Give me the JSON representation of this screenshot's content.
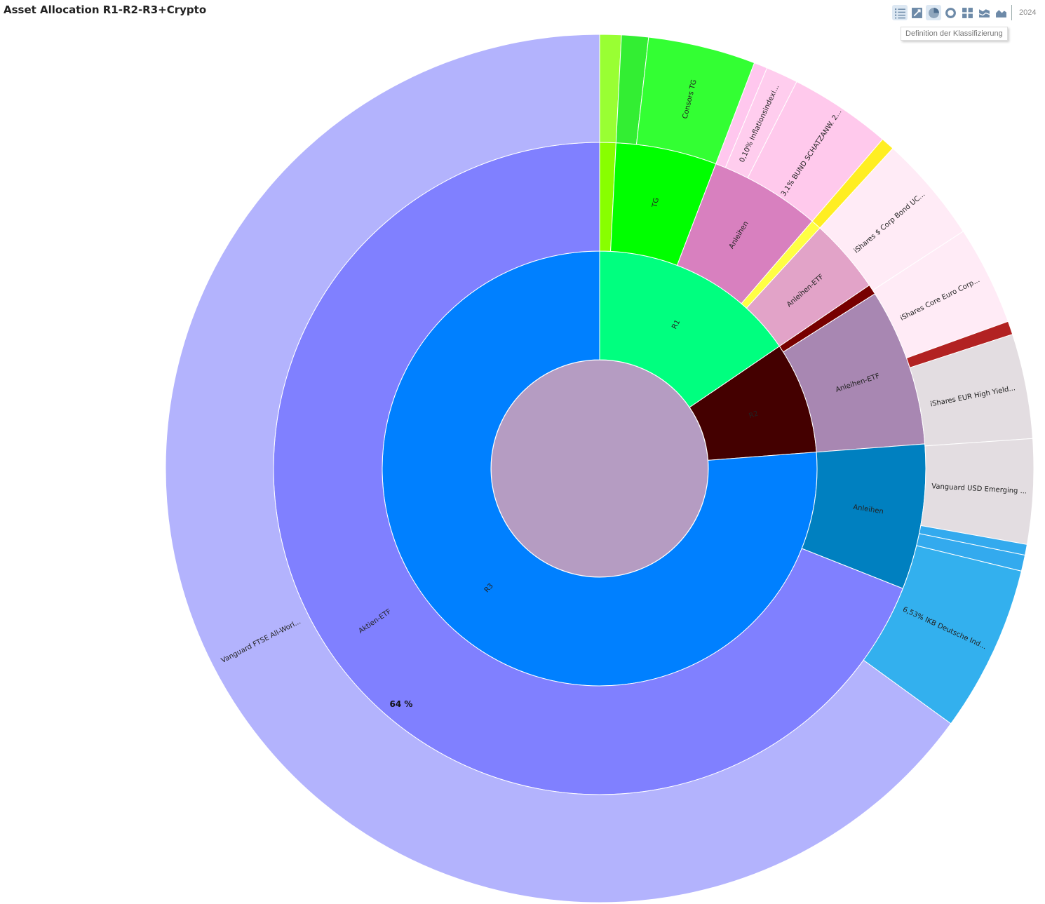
{
  "title": "Asset Allocation R1-R2-R3+Crypto",
  "toolbar": {
    "buttons": [
      {
        "name": "list-view-icon",
        "active": true
      },
      {
        "name": "treemap-view-icon",
        "active": false
      },
      {
        "name": "pie-view-icon",
        "active": true
      },
      {
        "name": "donut-view-icon",
        "active": false
      },
      {
        "name": "grid-view-icon",
        "active": false
      },
      {
        "name": "area-chart-icon",
        "active": false
      },
      {
        "name": "stacked-area-icon",
        "active": false
      }
    ],
    "year": "2024",
    "tooltip": "Definition der Klassifizierung"
  },
  "chart_data": {
    "type": "sunburst",
    "title": "Asset Allocation R1-R2-R3+Crypto",
    "center_color": "#b59cc2",
    "highlight_label": "64 %",
    "rings": [
      [
        {
          "label": "R1",
          "value": 15.5,
          "color": "#00ff7f"
        },
        {
          "label": "R2",
          "value": 8.3,
          "color": "#440000"
        },
        {
          "label": "R3",
          "value": 76.2,
          "color": "#0080ff"
        }
      ],
      [
        {
          "label": "",
          "value": 0.8,
          "color": "#88ff00"
        },
        {
          "label": "TG",
          "value": 5.0,
          "color": "#00ff00"
        },
        {
          "label": "Anleihen",
          "value": 5.5,
          "color": "#d880bf"
        },
        {
          "label": "",
          "value": 0.5,
          "color": "#ffff44"
        },
        {
          "label": "Anleihen-ETF",
          "value": 3.7,
          "color": "#e2a3c8"
        },
        {
          "label": "",
          "value": 0.5,
          "color": "#770000"
        },
        {
          "label": "Anleihen-ETF",
          "value": 7.8,
          "color": "#a887b2"
        },
        {
          "label": "Anleihen",
          "value": 7.2,
          "color": "#0080c0"
        },
        {
          "label": "Aktien-ETF",
          "value": 69.0,
          "color": "#8080ff"
        }
      ],
      [
        {
          "label": "",
          "value": 0.8,
          "color": "#99ff33"
        },
        {
          "label": "",
          "value": 1.0,
          "color": "#33ee33"
        },
        {
          "label": "Consors TG",
          "value": 4.0,
          "color": "#33ff33"
        },
        {
          "label": "",
          "value": 0.5,
          "color": "#ffc7ee"
        },
        {
          "label": "0,10% Inflationsindexi...",
          "value": 1.2,
          "color": "#ffcdee"
        },
        {
          "label": "3,1% BUND SCHATZANW. 2...",
          "value": 3.8,
          "color": "#ffc9ec"
        },
        {
          "label": "",
          "value": 0.5,
          "color": "#ffee22"
        },
        {
          "label": "iShares $ Corp Bond UC...",
          "value": 4.0,
          "color": "#ffebf6"
        },
        {
          "label": "iShares Core Euro Corp...",
          "value": 3.7,
          "color": "#ffebf6"
        },
        {
          "label": "",
          "value": 0.5,
          "color": "#b22222"
        },
        {
          "label": "iShares EUR High Yield...",
          "value": 3.9,
          "color": "#e3dde1"
        },
        {
          "label": "Vanguard USD Emerging ...",
          "value": 3.9,
          "color": "#e3dde1"
        },
        {
          "label": "",
          "value": 0.4,
          "color": "#33aaee"
        },
        {
          "label": "",
          "value": 0.6,
          "color": "#33aaee"
        },
        {
          "label": "6,53% IKB Deutsche Ind...",
          "value": 6.2,
          "color": "#33b0ee"
        },
        {
          "label": "Vanguard FTSE All-Worl...",
          "value": 65.0,
          "color": "#b3b3fd"
        }
      ]
    ]
  }
}
